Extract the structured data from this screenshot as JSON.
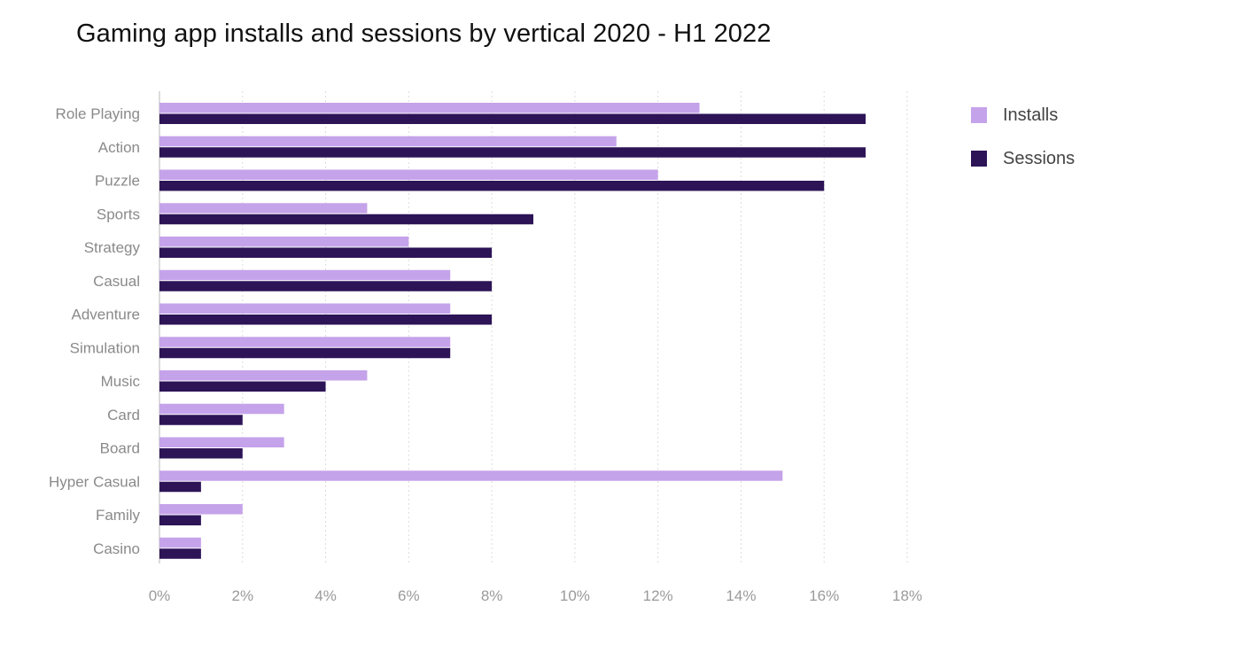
{
  "chart_data": {
    "type": "bar",
    "orientation": "horizontal",
    "title": "Gaming app installs and sessions by vertical 2020 - H1 2022",
    "categories": [
      "Role Playing",
      "Action",
      "Puzzle",
      "Sports",
      "Strategy",
      "Casual",
      "Adventure",
      "Simulation",
      "Music",
      "Card",
      "Board",
      "Hyper Casual",
      "Family",
      "Casino"
    ],
    "series": [
      {
        "name": "Installs",
        "color": "#c5a3ea",
        "values": [
          13,
          11,
          12,
          5,
          6,
          7,
          7,
          7,
          5,
          3,
          3,
          15,
          2,
          1
        ]
      },
      {
        "name": "Sessions",
        "color": "#2d1457",
        "values": [
          17,
          17,
          16,
          9,
          8,
          8,
          8,
          7,
          4,
          2,
          2,
          1,
          1,
          1
        ]
      }
    ],
    "xlim": [
      0,
      18
    ],
    "xticks": [
      "0%",
      "2%",
      "4%",
      "6%",
      "8%",
      "10%",
      "12%",
      "14%",
      "16%",
      "18%"
    ],
    "xlabel": "",
    "ylabel": "",
    "grid": true,
    "legend_position": "top-right"
  }
}
